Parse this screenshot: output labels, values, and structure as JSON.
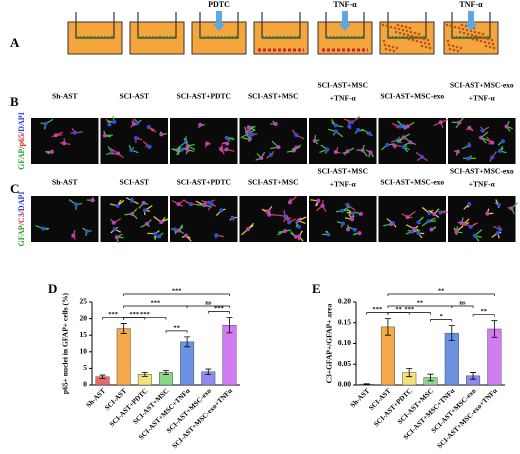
{
  "panel_a": {
    "label": "A",
    "annotations": [
      "PDTC",
      "TNF-α",
      "TNF-α"
    ]
  },
  "panel_b": {
    "label": "B",
    "stain": [
      "GFAP",
      "/p65",
      "/DAPI"
    ],
    "columns": [
      [
        "Sh-AST"
      ],
      [
        "SCI-AST"
      ],
      [
        "SCI-AST+PDTC"
      ],
      [
        "SCI-AST+MSC"
      ],
      [
        "SCI-AST+MSC",
        "+TNF-α"
      ],
      [
        "SCI-AST+MSC-exo"
      ],
      [
        "SCI-AST+MSC-exo",
        "+TNF-α"
      ]
    ]
  },
  "panel_c": {
    "label": "C",
    "stain": [
      "GFAP",
      "/C3",
      "/DAPI"
    ],
    "columns": [
      [
        "Sh-AST"
      ],
      [
        "SCI-AST"
      ],
      [
        "SCI-AST+PDTC"
      ],
      [
        "SCI-AST+MSC"
      ],
      [
        "SCI-AST+MSC",
        "+TNF-α"
      ],
      [
        "SCI-AST+MSC-exo"
      ],
      [
        "SCI-AST+MSC-exo",
        "+TNF-α"
      ]
    ]
  },
  "chart_data": [
    {
      "type": "bar",
      "label": "D",
      "y_label": "p65+ nuclei in GFAP+ cells (%)",
      "categories": [
        "Sh-AST",
        "SCI-AST",
        "SCI-AST+PDTC",
        "SCI-AST+MSC",
        "SCI-AST+MSC+TNFα",
        "SCI-AST+MSC-exo",
        "SCI-AST+MSC-exo+TNFα"
      ],
      "values": [
        2.5,
        17,
        3.2,
        3.8,
        13,
        4,
        18
      ],
      "errors": [
        0.5,
        1.5,
        0.6,
        0.6,
        1.5,
        0.8,
        2.3
      ],
      "colors": [
        "#e86a6a",
        "#f6a94a",
        "#f2e27a",
        "#8ad88a",
        "#6a92e0",
        "#8c8cf0",
        "#d27cf2"
      ],
      "ylim": [
        0,
        25
      ],
      "yticks": [
        0,
        5,
        10,
        15,
        20,
        25
      ],
      "annotations": [
        "***",
        "***",
        "***",
        "**",
        "***",
        "***",
        "ns",
        "***"
      ]
    },
    {
      "type": "bar",
      "label": "E",
      "y_label": "C3+GFAP+/GFAP+ area",
      "categories": [
        "Sh-AST",
        "SCI-AST",
        "SCI-AST+PDTC",
        "SCI-AST+MSC",
        "SCI-AST+MSC+TNFα",
        "SCI-AST+MSC-exo",
        "SCI-AST+MSC-exo+TNFα"
      ],
      "values": [
        0.002,
        0.14,
        0.03,
        0.018,
        0.125,
        0.022,
        0.135
      ],
      "errors": [
        0.001,
        0.02,
        0.01,
        0.008,
        0.018,
        0.008,
        0.02
      ],
      "colors": [
        "#e86a6a",
        "#f6a94a",
        "#f2e27a",
        "#8ad88a",
        "#6a92e0",
        "#8c8cf0",
        "#d27cf2"
      ],
      "ylim": [
        0,
        0.2
      ],
      "yticks": [
        {
          "value": 0,
          "label": "0.00"
        },
        {
          "value": 0.05,
          "label": "0.05"
        },
        {
          "value": 0.1,
          "label": "0.10"
        },
        {
          "value": 0.15,
          "label": "0.15"
        },
        {
          "value": 0.2,
          "label": "0.20"
        }
      ],
      "annotations": [
        "***",
        "**",
        "***",
        "*",
        "**",
        "**",
        "ns",
        "**"
      ]
    }
  ]
}
